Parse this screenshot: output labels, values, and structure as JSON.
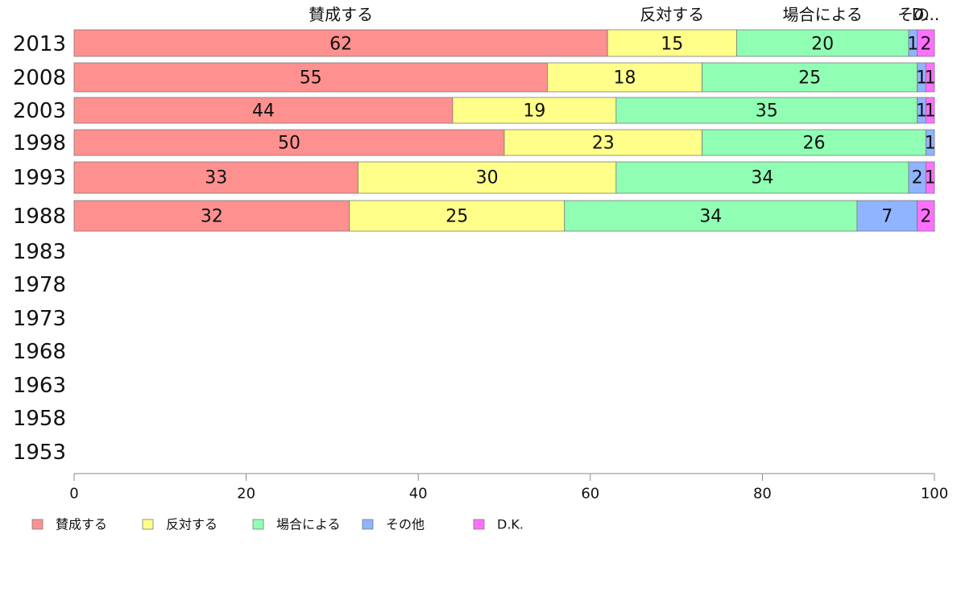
{
  "chart_data": {
    "type": "bar",
    "orientation": "horizontal",
    "stacked": true,
    "categories": [
      "2013",
      "2008",
      "2003",
      "1998",
      "1993",
      "1988",
      "1983",
      "1978",
      "1973",
      "1968",
      "1963",
      "1958",
      "1953"
    ],
    "series": [
      {
        "name": "賛成する",
        "color": "#ff9090",
        "values": [
          62,
          55,
          44,
          50,
          33,
          32,
          null,
          null,
          null,
          null,
          null,
          null,
          null
        ]
      },
      {
        "name": "反対する",
        "color": "#ffff8a",
        "values": [
          15,
          18,
          19,
          23,
          30,
          25,
          null,
          null,
          null,
          null,
          null,
          null,
          null
        ]
      },
      {
        "name": "場合による",
        "color": "#90ffb4",
        "values": [
          20,
          25,
          35,
          26,
          34,
          34,
          null,
          null,
          null,
          null,
          null,
          null,
          null
        ]
      },
      {
        "name": "その他",
        "color": "#90b4ff",
        "values": [
          1,
          1,
          1,
          1,
          2,
          7,
          null,
          null,
          null,
          null,
          null,
          null,
          null
        ]
      },
      {
        "name": "D.K.",
        "color": "#ff70ff",
        "values": [
          2,
          1,
          1,
          0,
          1,
          2,
          null,
          null,
          null,
          null,
          null,
          null,
          null
        ]
      }
    ],
    "top_labels": [
      "賛成する",
      "反対する",
      "場合による",
      "その",
      "D..."
    ],
    "xlim": [
      0,
      100
    ],
    "xticks": [
      "0",
      "20",
      "40",
      "60",
      "80",
      "100"
    ],
    "grid": false,
    "legend_position": "bottom"
  }
}
